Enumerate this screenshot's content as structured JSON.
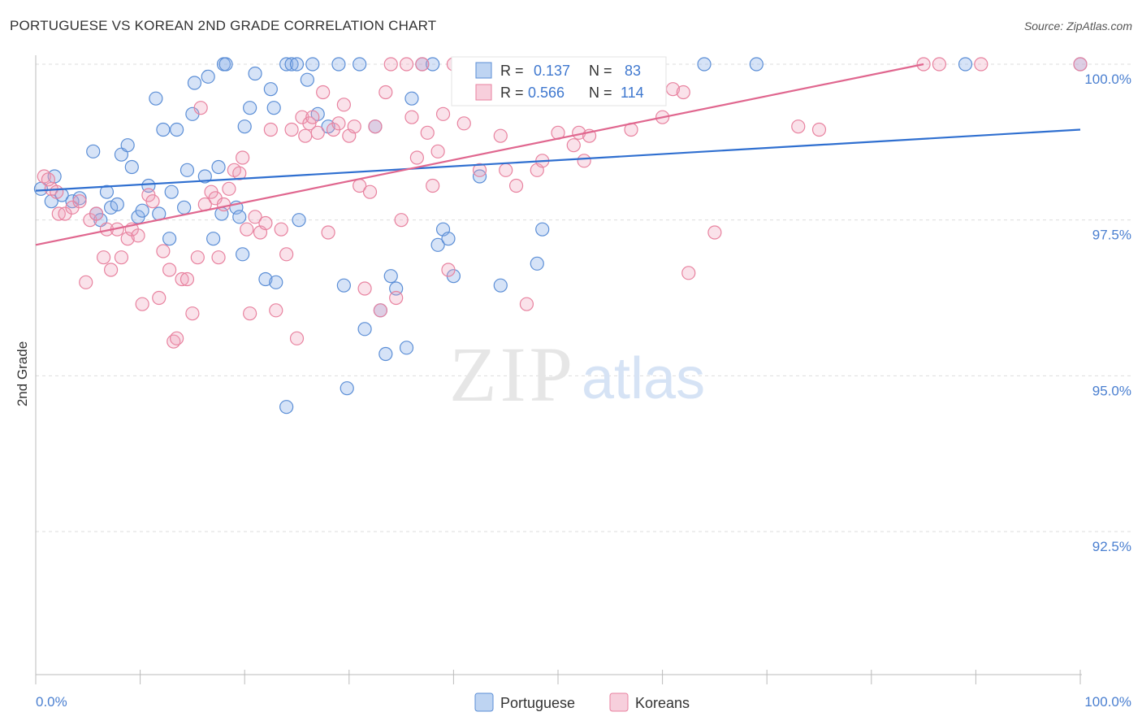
{
  "header": {
    "title": "PORTUGUESE VS KOREAN 2ND GRADE CORRELATION CHART",
    "source": "Source: ZipAtlas.com"
  },
  "watermark": {
    "zip": "ZIP",
    "atlas": "atlas"
  },
  "colors": {
    "blue": "#5b8ed6",
    "blue_fill": "rgba(137,176,232,0.35)",
    "blue_line": "#2f6fd0",
    "pink": "#e8829f",
    "pink_fill": "rgba(240,160,186,0.30)",
    "pink_line": "#e0678f",
    "tick_label": "#4a7fd0",
    "grid": "#dddddd"
  },
  "legend_stats": [
    {
      "r_label": "R =",
      "r_value": "0.137",
      "n_label": "N =",
      "n_value": "83",
      "series": "blue"
    },
    {
      "r_label": "R =",
      "r_value": "0.566",
      "n_label": "N =",
      "n_value": "114",
      "series": "pink"
    }
  ],
  "chart_data": {
    "type": "scatter",
    "title": "PORTUGUESE VS KOREAN 2ND GRADE CORRELATION CHART",
    "xlabel": "",
    "ylabel": "2nd Grade",
    "xlim": [
      0,
      100
    ],
    "ylim": [
      90.3,
      100.3
    ],
    "y_ticks": [
      100.0,
      97.5,
      95.0,
      92.5
    ],
    "y_tick_labels": [
      "100.0%",
      "97.5%",
      "95.0%",
      "92.5%"
    ],
    "x_tick_labels": [
      "0.0%",
      "100.0%"
    ],
    "grid": "horizontal dashed",
    "legend_position": "bottom-center",
    "series": [
      {
        "name": "Portuguese",
        "color": "#5b8ed6",
        "trend": {
          "x": [
            0,
            100
          ],
          "y": [
            97.97,
            98.95
          ]
        },
        "points": [
          [
            0.5,
            98.0
          ],
          [
            1.5,
            97.8
          ],
          [
            1.8,
            98.2
          ],
          [
            2.5,
            97.9
          ],
          [
            3.5,
            97.8
          ],
          [
            4.2,
            97.85
          ],
          [
            5.5,
            98.6
          ],
          [
            5.8,
            97.6
          ],
          [
            6.2,
            97.5
          ],
          [
            6.8,
            97.95
          ],
          [
            7.2,
            97.7
          ],
          [
            7.8,
            97.75
          ],
          [
            8.2,
            98.55
          ],
          [
            8.8,
            98.7
          ],
          [
            9.2,
            98.35
          ],
          [
            9.8,
            97.55
          ],
          [
            10.2,
            97.65
          ],
          [
            10.8,
            98.05
          ],
          [
            11.5,
            99.45
          ],
          [
            11.8,
            97.6
          ],
          [
            12.2,
            98.95
          ],
          [
            12.8,
            97.2
          ],
          [
            13.5,
            98.95
          ],
          [
            13.0,
            97.95
          ],
          [
            14.2,
            97.7
          ],
          [
            14.5,
            98.3
          ],
          [
            15.0,
            99.2
          ],
          [
            15.2,
            99.7
          ],
          [
            16.2,
            98.2
          ],
          [
            16.5,
            99.8
          ],
          [
            17.0,
            97.2
          ],
          [
            17.5,
            98.35
          ],
          [
            17.8,
            97.6
          ],
          [
            18.0,
            100.0
          ],
          [
            18.2,
            100.0
          ],
          [
            19.2,
            97.7
          ],
          [
            19.5,
            97.55
          ],
          [
            19.8,
            96.95
          ],
          [
            20.0,
            99.0
          ],
          [
            20.5,
            99.3
          ],
          [
            21.0,
            99.85
          ],
          [
            22.0,
            96.55
          ],
          [
            22.5,
            99.6
          ],
          [
            22.8,
            99.3
          ],
          [
            23.0,
            96.5
          ],
          [
            24.0,
            100.0
          ],
          [
            24.5,
            100.0
          ],
          [
            25.0,
            100.0
          ],
          [
            25.2,
            97.5
          ],
          [
            26.0,
            99.75
          ],
          [
            26.5,
            100.0
          ],
          [
            27.0,
            99.2
          ],
          [
            28.0,
            99.0
          ],
          [
            29.0,
            100.0
          ],
          [
            29.5,
            96.45
          ],
          [
            29.8,
            94.8
          ],
          [
            31.0,
            100.0
          ],
          [
            31.5,
            95.75
          ],
          [
            32.5,
            99.0
          ],
          [
            33.0,
            96.05
          ],
          [
            33.5,
            95.35
          ],
          [
            34.0,
            96.6
          ],
          [
            34.5,
            96.4
          ],
          [
            35.5,
            95.45
          ],
          [
            36.0,
            99.45
          ],
          [
            37.0,
            100.0
          ],
          [
            38.0,
            100.0
          ],
          [
            38.5,
            97.1
          ],
          [
            39.0,
            97.35
          ],
          [
            39.5,
            97.2
          ],
          [
            40.0,
            96.6
          ],
          [
            41.0,
            100.0
          ],
          [
            42.5,
            98.2
          ],
          [
            43.0,
            100.0
          ],
          [
            44.5,
            96.45
          ],
          [
            48.0,
            96.8
          ],
          [
            48.5,
            97.35
          ],
          [
            50.0,
            100.0
          ],
          [
            64.0,
            100.0
          ],
          [
            69.0,
            100.0
          ],
          [
            89.0,
            100.0
          ],
          [
            100.0,
            100.0
          ],
          [
            24.0,
            94.5
          ]
        ]
      },
      {
        "name": "Koreans",
        "color": "#e8829f",
        "trend": {
          "x": [
            0,
            85
          ],
          "y": [
            97.1,
            100.0
          ]
        },
        "points": [
          [
            0.8,
            98.2
          ],
          [
            1.5,
            98.0
          ],
          [
            2.2,
            97.6
          ],
          [
            2.8,
            97.6
          ],
          [
            3.5,
            97.7
          ],
          [
            4.2,
            97.8
          ],
          [
            4.8,
            96.5
          ],
          [
            5.2,
            97.5
          ],
          [
            5.8,
            97.6
          ],
          [
            6.5,
            96.9
          ],
          [
            6.8,
            97.35
          ],
          [
            7.2,
            96.7
          ],
          [
            7.8,
            97.35
          ],
          [
            8.2,
            96.9
          ],
          [
            8.8,
            97.2
          ],
          [
            9.2,
            97.35
          ],
          [
            9.8,
            97.25
          ],
          [
            10.2,
            96.15
          ],
          [
            10.8,
            97.9
          ],
          [
            11.2,
            97.8
          ],
          [
            11.8,
            96.25
          ],
          [
            12.2,
            97.0
          ],
          [
            12.8,
            96.7
          ],
          [
            13.2,
            95.55
          ],
          [
            13.5,
            95.6
          ],
          [
            14.0,
            96.55
          ],
          [
            14.5,
            96.55
          ],
          [
            15.0,
            96.0
          ],
          [
            15.5,
            96.9
          ],
          [
            15.8,
            99.3
          ],
          [
            16.2,
            97.75
          ],
          [
            16.8,
            97.95
          ],
          [
            17.2,
            97.85
          ],
          [
            17.5,
            96.9
          ],
          [
            18.0,
            97.75
          ],
          [
            18.5,
            98.0
          ],
          [
            19.0,
            98.3
          ],
          [
            19.5,
            98.25
          ],
          [
            19.8,
            98.5
          ],
          [
            20.2,
            97.35
          ],
          [
            20.5,
            96.0
          ],
          [
            21.0,
            97.55
          ],
          [
            21.5,
            97.3
          ],
          [
            22.0,
            97.45
          ],
          [
            22.5,
            98.95
          ],
          [
            23.0,
            96.05
          ],
          [
            23.5,
            97.35
          ],
          [
            24.0,
            96.95
          ],
          [
            24.5,
            98.95
          ],
          [
            25.0,
            95.6
          ],
          [
            25.5,
            99.15
          ],
          [
            25.8,
            98.85
          ],
          [
            26.2,
            99.05
          ],
          [
            26.5,
            99.15
          ],
          [
            27.0,
            98.9
          ],
          [
            27.5,
            99.55
          ],
          [
            28.0,
            97.3
          ],
          [
            28.5,
            98.95
          ],
          [
            29.0,
            99.05
          ],
          [
            29.5,
            99.35
          ],
          [
            30.0,
            98.85
          ],
          [
            30.5,
            99.0
          ],
          [
            31.0,
            98.05
          ],
          [
            31.5,
            96.4
          ],
          [
            32.0,
            97.95
          ],
          [
            32.5,
            99.0
          ],
          [
            33.0,
            96.05
          ],
          [
            33.5,
            99.55
          ],
          [
            34.0,
            100.0
          ],
          [
            34.5,
            96.25
          ],
          [
            35.0,
            97.5
          ],
          [
            35.5,
            100.0
          ],
          [
            36.0,
            99.15
          ],
          [
            36.5,
            98.5
          ],
          [
            37.0,
            100.0
          ],
          [
            37.5,
            98.9
          ],
          [
            38.0,
            98.05
          ],
          [
            38.5,
            98.6
          ],
          [
            39.0,
            99.2
          ],
          [
            39.5,
            96.7
          ],
          [
            40.0,
            100.0
          ],
          [
            41.0,
            99.05
          ],
          [
            42.5,
            98.3
          ],
          [
            43.5,
            100.0
          ],
          [
            44.5,
            98.85
          ],
          [
            45.0,
            98.3
          ],
          [
            46.0,
            98.05
          ],
          [
            47.0,
            96.15
          ],
          [
            48.0,
            98.3
          ],
          [
            48.5,
            98.45
          ],
          [
            50.0,
            98.9
          ],
          [
            51.5,
            98.7
          ],
          [
            52.0,
            98.9
          ],
          [
            52.5,
            98.45
          ],
          [
            53.0,
            98.85
          ],
          [
            54.0,
            100.0
          ],
          [
            56.0,
            100.0
          ],
          [
            56.5,
            100.0
          ],
          [
            57.0,
            98.95
          ],
          [
            58.0,
            100.0
          ],
          [
            59.0,
            100.0
          ],
          [
            60.0,
            99.15
          ],
          [
            61.0,
            99.6
          ],
          [
            62.0,
            99.55
          ],
          [
            62.5,
            96.65
          ],
          [
            65.0,
            97.3
          ],
          [
            73.0,
            99.0
          ],
          [
            75.0,
            98.95
          ],
          [
            85.0,
            100.0
          ],
          [
            86.5,
            100.0
          ],
          [
            90.5,
            100.0
          ],
          [
            100.0,
            100.0
          ],
          [
            1.2,
            98.15
          ],
          [
            2.0,
            97.95
          ]
        ]
      }
    ]
  },
  "legend": {
    "items": [
      "Portuguese",
      "Koreans"
    ]
  }
}
